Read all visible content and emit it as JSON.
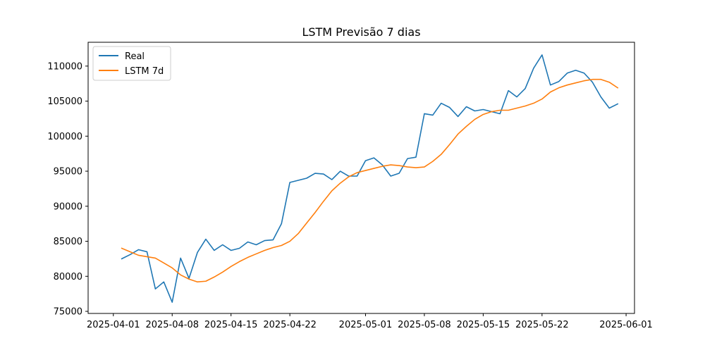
{
  "chart_data": {
    "type": "line",
    "title": "LSTM Previsão 7 dias",
    "xlabel": "",
    "ylabel": "",
    "x_axis_type": "date",
    "xlim": [
      "2025-03-29",
      "2025-06-02"
    ],
    "ylim": [
      74700,
      113400
    ],
    "x_ticks": [
      "2025-04-01",
      "2025-04-08",
      "2025-04-15",
      "2025-04-22",
      "2025-05-01",
      "2025-05-08",
      "2025-05-15",
      "2025-05-22",
      "2025-06-01"
    ],
    "y_ticks": [
      75000,
      80000,
      85000,
      90000,
      95000,
      100000,
      105000,
      110000
    ],
    "grid": false,
    "legend": "top-left",
    "x": [
      "2025-04-02",
      "2025-04-03",
      "2025-04-04",
      "2025-04-05",
      "2025-04-06",
      "2025-04-07",
      "2025-04-08",
      "2025-04-09",
      "2025-04-10",
      "2025-04-11",
      "2025-04-12",
      "2025-04-13",
      "2025-04-14",
      "2025-04-15",
      "2025-04-16",
      "2025-04-17",
      "2025-04-18",
      "2025-04-19",
      "2025-04-20",
      "2025-04-21",
      "2025-04-22",
      "2025-04-23",
      "2025-04-24",
      "2025-04-25",
      "2025-04-26",
      "2025-04-27",
      "2025-04-28",
      "2025-04-29",
      "2025-04-30",
      "2025-05-01",
      "2025-05-02",
      "2025-05-03",
      "2025-05-04",
      "2025-05-05",
      "2025-05-06",
      "2025-05-07",
      "2025-05-08",
      "2025-05-09",
      "2025-05-10",
      "2025-05-11",
      "2025-05-12",
      "2025-05-13",
      "2025-05-14",
      "2025-05-15",
      "2025-05-16",
      "2025-05-17",
      "2025-05-18",
      "2025-05-19",
      "2025-05-20",
      "2025-05-21",
      "2025-05-22",
      "2025-05-23",
      "2025-05-24",
      "2025-05-25",
      "2025-05-26",
      "2025-05-27",
      "2025-05-28",
      "2025-05-29",
      "2025-05-30",
      "2025-05-31"
    ],
    "series": [
      {
        "name": "Real",
        "color": "#1f77b4",
        "values": [
          82500,
          83100,
          83800,
          83500,
          78200,
          79200,
          76300,
          82600,
          79700,
          83400,
          85300,
          83700,
          84500,
          83700,
          84000,
          84900,
          84500,
          85100,
          85200,
          87500,
          93400,
          93700,
          94000,
          94700,
          94600,
          93800,
          95000,
          94300,
          94300,
          96500,
          96900,
          95900,
          94300,
          94700,
          96800,
          97000,
          103200,
          103000,
          104700,
          104100,
          102800,
          104200,
          103600,
          103800,
          103500,
          103200,
          106500,
          105600,
          106800,
          109700,
          111600,
          107300,
          107800,
          109000,
          109400,
          109000,
          107700,
          105600,
          104000,
          104600
        ]
      },
      {
        "name": "LSTM 7d",
        "color": "#ff7f0e",
        "values": [
          84000,
          83500,
          83000,
          82800,
          82600,
          81900,
          81200,
          80200,
          79600,
          79200,
          79300,
          79900,
          80600,
          81400,
          82100,
          82700,
          83200,
          83700,
          84100,
          84400,
          85000,
          86100,
          87600,
          89100,
          90700,
          92200,
          93300,
          94200,
          94800,
          95100,
          95400,
          95700,
          95900,
          95800,
          95600,
          95500,
          95600,
          96400,
          97400,
          98800,
          100300,
          101400,
          102400,
          103100,
          103500,
          103700,
          103700,
          104000,
          104300,
          104700,
          105300,
          106300,
          106900,
          107300,
          107600,
          107900,
          108100,
          108100,
          107700,
          106900
        ]
      }
    ]
  }
}
